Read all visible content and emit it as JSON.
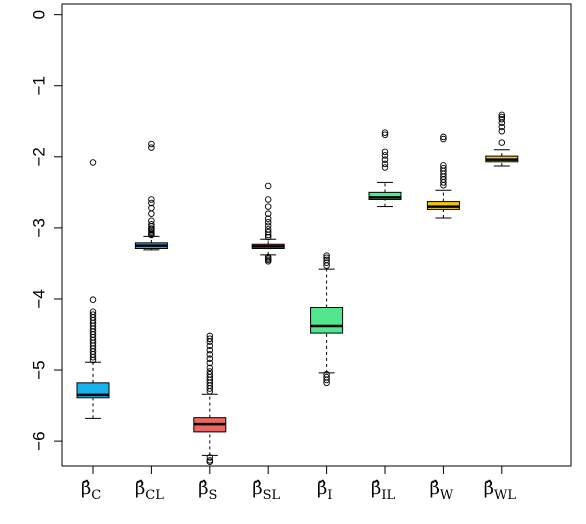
{
  "chart_data": {
    "type": "box",
    "title": "",
    "xlabel": "",
    "ylabel": "",
    "ylim": [
      -6.35,
      0.15
    ],
    "yticks": [
      0,
      -1,
      -2,
      -3,
      -4,
      -5,
      -6
    ],
    "ytick_labels": [
      "0",
      "−1",
      "−2",
      "−3",
      "−4",
      "−5",
      "−6"
    ],
    "categories": [
      {
        "label": "β̂",
        "sub": "C"
      },
      {
        "label": "β̂",
        "sub": "CL"
      },
      {
        "label": "β̂",
        "sub": "S"
      },
      {
        "label": "β̂",
        "sub": "SL"
      },
      {
        "label": "β̂",
        "sub": "I"
      },
      {
        "label": "β̂",
        "sub": "IL"
      },
      {
        "label": "β̂",
        "sub": "W"
      },
      {
        "label": "β̂",
        "sub": "WL"
      }
    ],
    "boxes": [
      {
        "color": "#1ab2ee",
        "whisker_low": -5.68,
        "q1": -5.39,
        "median": -5.35,
        "q3": -5.18,
        "whisker_high": -4.89,
        "outliers": [
          -2.08,
          -4.01,
          -4.18,
          -4.22,
          -4.26,
          -4.3,
          -4.34,
          -4.38,
          -4.42,
          -4.46,
          -4.5,
          -4.54,
          -4.58,
          -4.62,
          -4.66,
          -4.7,
          -4.74,
          -4.78,
          -4.82,
          -4.86
        ]
      },
      {
        "color": "#1ab2ee",
        "whisker_low": -3.31,
        "q1": -3.29,
        "median": -3.25,
        "q3": -3.21,
        "whisker_high": -3.12,
        "outliers": [
          -1.82,
          -1.87,
          -2.6,
          -2.65,
          -2.72,
          -2.8,
          -2.9,
          -2.95,
          -2.98,
          -3.01,
          -3.03,
          -3.05,
          -3.07,
          -3.09,
          -3.1
        ]
      },
      {
        "color": "#e86664",
        "whisker_low": -6.2,
        "q1": -5.87,
        "median": -5.76,
        "q3": -5.67,
        "whisker_high": -5.34,
        "outliers": [
          -4.52,
          -4.56,
          -4.6,
          -4.66,
          -4.72,
          -4.78,
          -4.84,
          -4.9,
          -4.97,
          -5.02,
          -5.06,
          -5.1,
          -5.14,
          -5.18,
          -5.22,
          -5.26,
          -5.3,
          -6.23,
          -6.27,
          -6.29
        ]
      },
      {
        "color": "#e86664",
        "whisker_low": -3.38,
        "q1": -3.29,
        "median": -3.26,
        "q3": -3.23,
        "whisker_high": -3.16,
        "outliers": [
          -2.41,
          -2.6,
          -2.7,
          -2.8,
          -2.87,
          -2.92,
          -2.97,
          -3.02,
          -3.06,
          -3.1,
          -3.13,
          -3.41,
          -3.43,
          -3.45,
          -3.47
        ]
      },
      {
        "color": "#52e78e",
        "whisker_low": -5.04,
        "q1": -4.48,
        "median": -4.38,
        "q3": -4.12,
        "whisker_high": -3.58,
        "outliers": [
          -3.39,
          -3.42,
          -3.45,
          -3.49,
          -3.53,
          -5.06,
          -5.1,
          -5.14,
          -5.18
        ]
      },
      {
        "color": "#52e78e",
        "whisker_low": -2.7,
        "q1": -2.6,
        "median": -2.57,
        "q3": -2.5,
        "whisker_high": -2.36,
        "outliers": [
          -1.66,
          -1.69,
          -1.93,
          -1.98,
          -2.04,
          -2.1,
          -2.15
        ]
      },
      {
        "color": "#f0c713",
        "whisker_low": -2.86,
        "q1": -2.74,
        "median": -2.7,
        "q3": -2.63,
        "whisker_high": -2.47,
        "outliers": [
          -1.72,
          -1.75,
          -2.12,
          -2.16,
          -2.2,
          -2.24,
          -2.28,
          -2.32,
          -2.36,
          -2.4
        ]
      },
      {
        "color": "#f0c713",
        "whisker_low": -2.13,
        "q1": -2.07,
        "median": -2.04,
        "q3": -1.99,
        "whisker_high": -1.9,
        "outliers": [
          -1.41,
          -1.44,
          -1.47,
          -1.52,
          -1.58,
          -1.64,
          -1.8
        ]
      }
    ]
  }
}
